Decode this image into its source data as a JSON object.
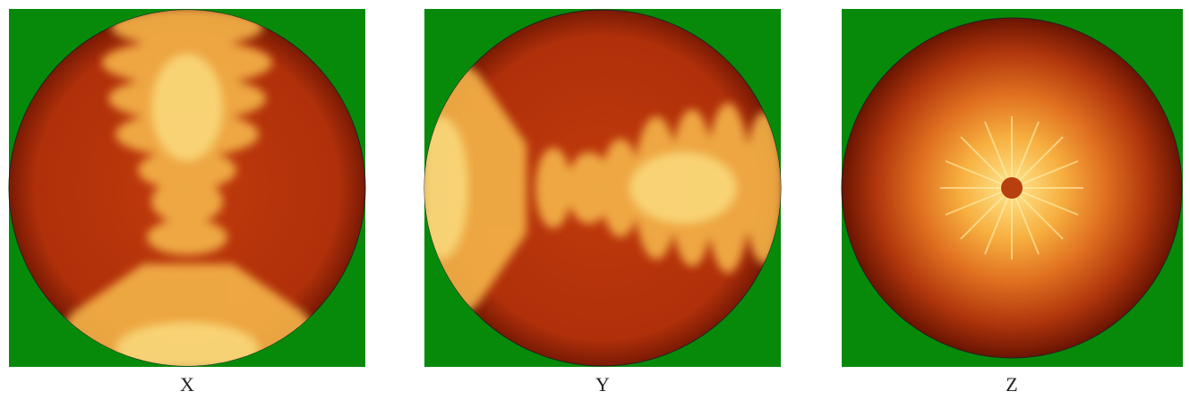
{
  "panels": [
    {
      "label": "X"
    },
    {
      "label": "Y"
    },
    {
      "label": "Z"
    }
  ]
}
